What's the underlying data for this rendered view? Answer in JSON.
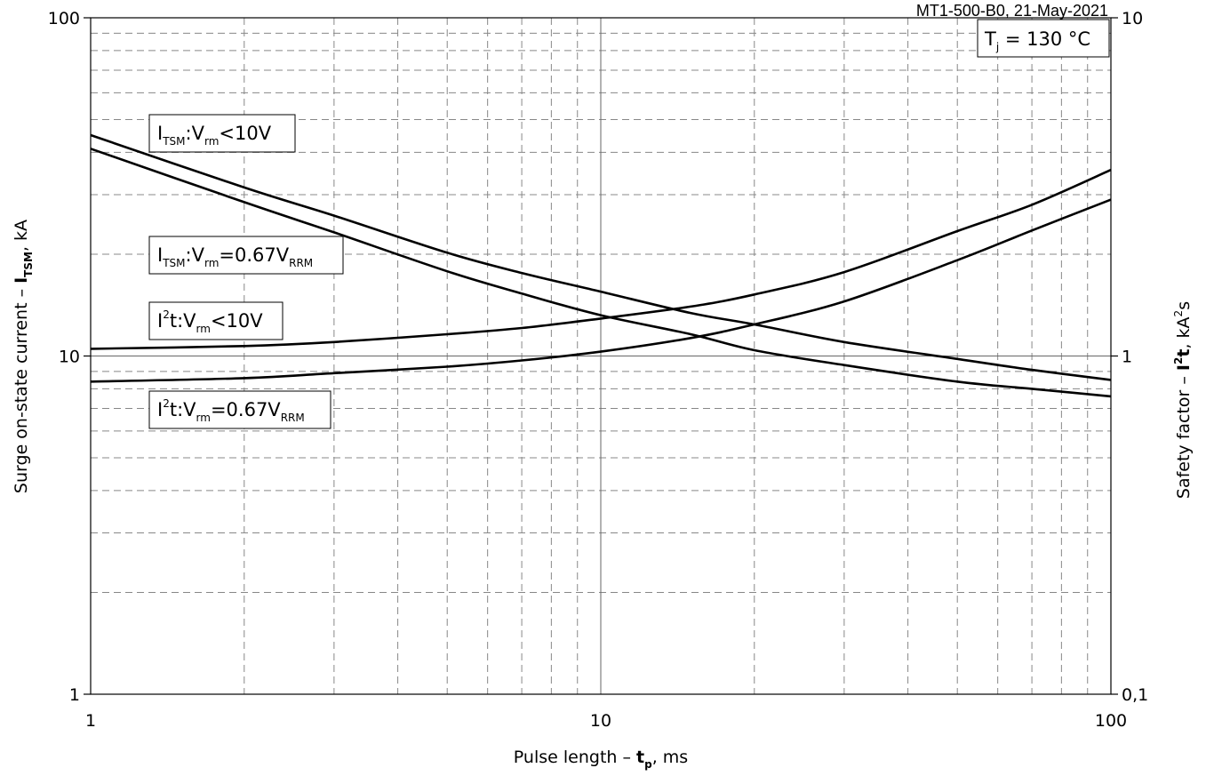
{
  "chart_data": {
    "type": "line",
    "header": "MT1-500-B0, 21-May-2021",
    "condition": {
      "prefix": "T",
      "sub": "j",
      "suffix": " = 130 °C"
    },
    "xlabel": {
      "prefix": "Pulse length – ",
      "bold": "t",
      "sub": "p",
      "suffix": ", ms"
    },
    "ylabel_left": {
      "prefix": "Surge on-state current – ",
      "bold": "I",
      "sub": "TSM",
      "suffix": ", kA"
    },
    "ylabel_right": {
      "prefix": "Safety factor – ",
      "bold": "I",
      "sup": "2",
      "bold2": "t",
      "suffix": ", kA",
      "sup2": "2",
      "suffix2": "s"
    },
    "x_scale": "log",
    "y_scale": "log",
    "xlim": [
      1,
      100
    ],
    "ylim_left": [
      1,
      100
    ],
    "ylim_right": [
      0.1,
      10
    ],
    "x_ticks": [
      "1",
      "10",
      "100"
    ],
    "y_ticks_left": [
      "1",
      "10",
      "100"
    ],
    "y_ticks_right": [
      "0,1",
      "1",
      "10"
    ],
    "grid": "dashed minor, solid major",
    "x": [
      1,
      2,
      3,
      5,
      7,
      10,
      15,
      20,
      30,
      50,
      70,
      100
    ],
    "series": [
      {
        "name": "ITSM:Vrm<10V",
        "axis": "left",
        "y": [
          45.0,
          31.5,
          26.0,
          20.2,
          17.6,
          15.5,
          13.4,
          12.4,
          11.0,
          9.8,
          9.1,
          8.5
        ]
      },
      {
        "name": "ITSM:Vrm=0.67VRRM",
        "axis": "left",
        "y": [
          41.0,
          28.5,
          23.2,
          17.8,
          15.3,
          13.2,
          11.6,
          10.4,
          9.4,
          8.4,
          8.0,
          7.6
        ]
      },
      {
        "name": "I2t:Vrm<10V",
        "axis": "right",
        "y": [
          1.05,
          1.07,
          1.1,
          1.16,
          1.21,
          1.29,
          1.4,
          1.52,
          1.77,
          2.34,
          2.8,
          3.55
        ]
      },
      {
        "name": "I2t:Vrm=0.67VRRM",
        "axis": "right",
        "y": [
          0.84,
          0.86,
          0.89,
          0.93,
          0.97,
          1.03,
          1.13,
          1.24,
          1.45,
          1.92,
          2.35,
          2.9
        ]
      }
    ],
    "labels": [
      {
        "main": "I",
        "sub1": "TSM",
        "mid": ":V",
        "sub2": "rm",
        "tail": "<10V",
        "sub3": ""
      },
      {
        "main": "I",
        "sub1": "TSM",
        "mid": ":V",
        "sub2": "rm",
        "tail": "=0.67V",
        "sub3": "RRM"
      },
      {
        "main": "I",
        "sup": "2",
        "mid": "t:V",
        "sub2": "rm",
        "tail": "<10V",
        "sub3": ""
      },
      {
        "main": "I",
        "sup": "2",
        "mid": "t:V",
        "sub2": "rm",
        "tail": "=0.67V",
        "sub3": "RRM"
      }
    ]
  }
}
